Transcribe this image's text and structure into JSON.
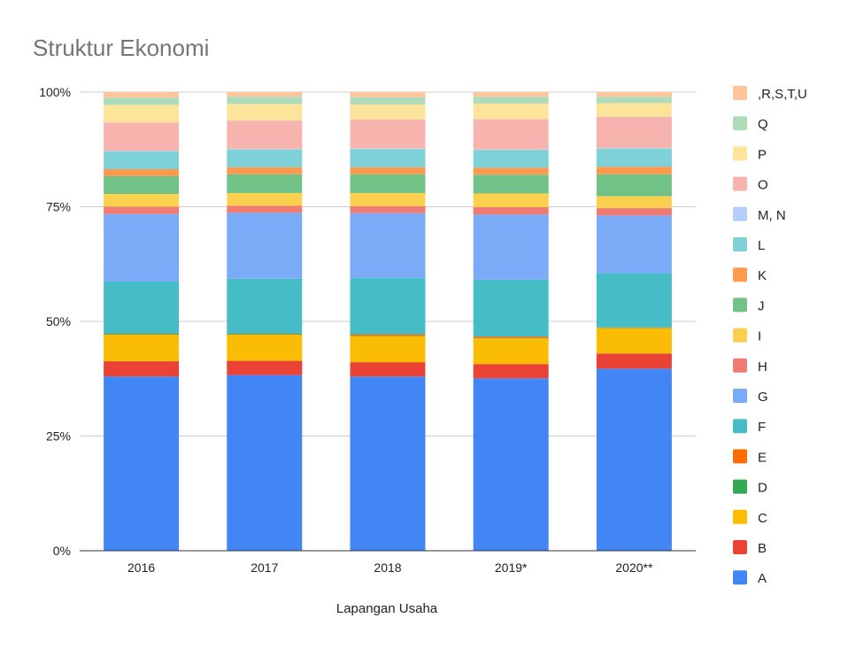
{
  "chart_data": {
    "type": "bar",
    "stacked": true,
    "percent": true,
    "title": "Struktur Ekonomi",
    "xlabel": "Lapangan Usaha",
    "ylabel": "",
    "ylim": [
      0,
      100
    ],
    "yticks": [
      "0%",
      "25%",
      "50%",
      "75%",
      "100%"
    ],
    "grid": true,
    "legend_position": "right",
    "categories": [
      "2016",
      "2017",
      "2018",
      "2019*",
      "2020**"
    ],
    "series": [
      {
        "name": "A",
        "color": "#4285F4",
        "values": [
          38.0,
          38.3,
          38.0,
          37.6,
          39.7
        ]
      },
      {
        "name": "B",
        "color": "#EA4335",
        "values": [
          3.3,
          3.1,
          3.1,
          3.1,
          3.3
        ]
      },
      {
        "name": "C",
        "color": "#FBBC04",
        "values": [
          5.8,
          5.7,
          5.7,
          5.6,
          5.5
        ]
      },
      {
        "name": "D",
        "color": "#34A853",
        "values": [
          0.1,
          0.1,
          0.1,
          0.1,
          0.1
        ]
      },
      {
        "name": "E",
        "color": "#FF6D01",
        "values": [
          0.1,
          0.1,
          0.3,
          0.3,
          0.1
        ]
      },
      {
        "name": "F",
        "color": "#46BDC6",
        "values": [
          11.4,
          12.0,
          12.3,
          12.4,
          11.8
        ]
      },
      {
        "name": "G",
        "color": "#7BAAF7",
        "values": [
          14.7,
          14.4,
          14.1,
          14.2,
          12.6
        ]
      },
      {
        "name": "H",
        "color": "#F07B72",
        "values": [
          1.6,
          1.5,
          1.5,
          1.6,
          1.6
        ]
      },
      {
        "name": "I",
        "color": "#FCD04F",
        "values": [
          2.8,
          2.8,
          2.9,
          3.0,
          2.6
        ]
      },
      {
        "name": "J",
        "color": "#71C287",
        "values": [
          3.9,
          4.1,
          4.1,
          4.1,
          4.8
        ]
      },
      {
        "name": "K",
        "color": "#FF994D",
        "values": [
          1.5,
          1.5,
          1.5,
          1.5,
          1.6
        ]
      },
      {
        "name": "L",
        "color": "#7ED1D7",
        "values": [
          3.9,
          3.9,
          4.0,
          3.9,
          4.0
        ]
      },
      {
        "name": "M, N",
        "color": "#B3CEFB",
        "values": [
          0.1,
          0.1,
          0.1,
          0.1,
          0.1
        ]
      },
      {
        "name": "O",
        "color": "#F7B4AE",
        "values": [
          6.2,
          6.2,
          6.3,
          6.6,
          6.8
        ]
      },
      {
        "name": "P",
        "color": "#FDE49B",
        "values": [
          3.8,
          3.6,
          3.3,
          3.4,
          3.0
        ]
      },
      {
        "name": "Q",
        "color": "#AEDCBA",
        "values": [
          1.6,
          1.6,
          1.6,
          1.5,
          1.4
        ]
      },
      {
        "name": ",R,S,T,U",
        "color": "#FFC599",
        "values": [
          1.2,
          1.0,
          1.1,
          1.0,
          1.0
        ]
      }
    ]
  }
}
